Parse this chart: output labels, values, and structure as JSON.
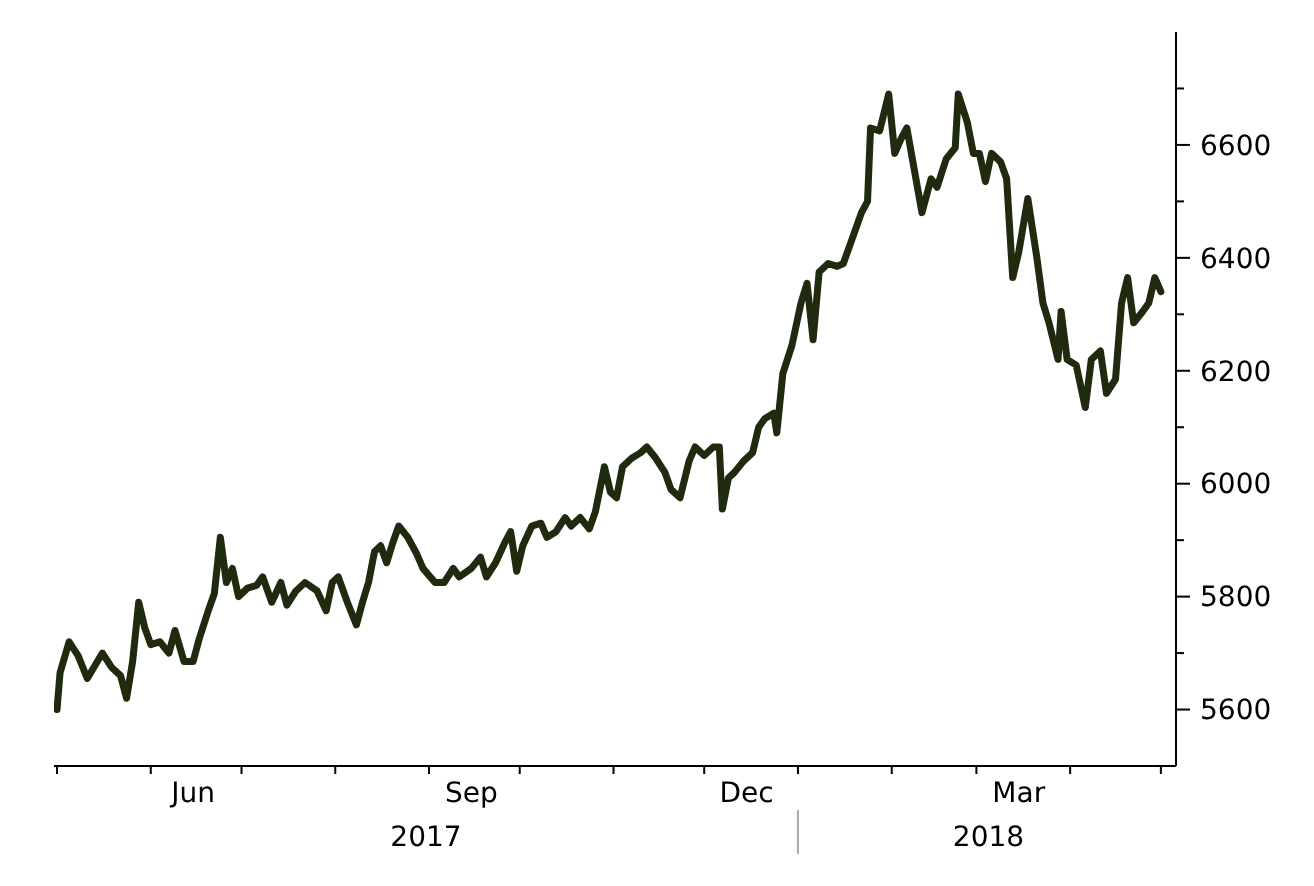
{
  "chart_data": {
    "type": "line",
    "x": [
      "2017-05-01",
      "2017-05-02",
      "2017-05-05",
      "2017-05-08",
      "2017-05-11",
      "2017-05-16",
      "2017-05-19",
      "2017-05-22",
      "2017-05-24",
      "2017-05-26",
      "2017-05-28",
      "2017-05-30",
      "2017-06-01",
      "2017-06-04",
      "2017-06-07",
      "2017-06-09",
      "2017-06-12",
      "2017-06-15",
      "2017-06-17",
      "2017-06-20",
      "2017-06-22",
      "2017-06-24",
      "2017-06-26",
      "2017-06-28",
      "2017-06-30",
      "2017-07-03",
      "2017-07-06",
      "2017-07-08",
      "2017-07-11",
      "2017-07-14",
      "2017-07-16",
      "2017-07-19",
      "2017-07-22",
      "2017-07-26",
      "2017-07-29",
      "2017-07-31",
      "2017-08-02",
      "2017-08-05",
      "2017-08-08",
      "2017-08-10",
      "2017-08-12",
      "2017-08-14",
      "2017-08-16",
      "2017-08-18",
      "2017-08-20",
      "2017-08-22",
      "2017-08-25",
      "2017-08-28",
      "2017-08-30",
      "2017-09-03",
      "2017-09-06",
      "2017-09-09",
      "2017-09-11",
      "2017-09-15",
      "2017-09-18",
      "2017-09-20",
      "2017-09-23",
      "2017-09-26",
      "2017-09-28",
      "2017-09-30",
      "2017-10-02",
      "2017-10-05",
      "2017-10-08",
      "2017-10-10",
      "2017-10-13",
      "2017-10-16",
      "2017-10-18",
      "2017-10-21",
      "2017-10-24",
      "2017-10-26",
      "2017-10-29",
      "2017-10-31",
      "2017-11-02",
      "2017-11-04",
      "2017-11-07",
      "2017-11-10",
      "2017-11-12",
      "2017-11-15",
      "2017-11-18",
      "2017-11-20",
      "2017-11-23",
      "2017-11-26",
      "2017-11-28",
      "2017-12-01",
      "2017-12-04",
      "2017-12-06",
      "2017-12-07",
      "2017-12-09",
      "2017-12-11",
      "2017-12-14",
      "2017-12-17",
      "2017-12-19",
      "2017-12-21",
      "2017-12-24",
      "2017-12-25",
      "2017-12-27",
      "2017-12-30",
      "2018-01-02",
      "2018-01-04",
      "2018-01-06",
      "2018-01-08",
      "2018-01-11",
      "2018-01-14",
      "2018-01-16",
      "2018-01-19",
      "2018-01-22",
      "2018-01-24",
      "2018-01-25",
      "2018-01-28",
      "2018-01-31",
      "2018-02-02",
      "2018-02-04",
      "2018-02-06",
      "2018-02-08",
      "2018-02-11",
      "2018-02-14",
      "2018-02-16",
      "2018-02-19",
      "2018-02-22",
      "2018-02-23",
      "2018-02-26",
      "2018-02-28",
      "2018-03-02",
      "2018-03-04",
      "2018-03-06",
      "2018-03-09",
      "2018-03-11",
      "2018-03-13",
      "2018-03-15",
      "2018-03-18",
      "2018-03-21",
      "2018-03-23",
      "2018-03-25",
      "2018-03-28",
      "2018-03-29",
      "2018-03-31",
      "2018-04-03",
      "2018-04-06",
      "2018-04-08",
      "2018-04-11",
      "2018-04-13",
      "2018-04-16",
      "2018-04-18",
      "2018-04-20",
      "2018-04-22",
      "2018-04-25",
      "2018-04-27",
      "2018-04-29",
      "2018-05-01"
    ],
    "series": [
      {
        "color": "#1f2a0e",
        "values": [
          5600,
          5665,
          5720,
          5695,
          5655,
          5700,
          5675,
          5660,
          5620,
          5685,
          5790,
          5745,
          5715,
          5720,
          5700,
          5740,
          5685,
          5685,
          5725,
          5775,
          5805,
          5905,
          5825,
          5850,
          5800,
          5815,
          5820,
          5835,
          5790,
          5825,
          5785,
          5810,
          5825,
          5810,
          5775,
          5825,
          5835,
          5790,
          5750,
          5790,
          5825,
          5880,
          5890,
          5860,
          5895,
          5925,
          5905,
          5875,
          5850,
          5825,
          5825,
          5850,
          5835,
          5850,
          5870,
          5835,
          5860,
          5895,
          5915,
          5845,
          5890,
          5925,
          5930,
          5905,
          5915,
          5940,
          5925,
          5940,
          5920,
          5950,
          6030,
          5985,
          5975,
          6030,
          6045,
          6055,
          6065,
          6045,
          6020,
          5990,
          5975,
          6040,
          6065,
          6050,
          6065,
          6065,
          5955,
          6010,
          6020,
          6040,
          6055,
          6100,
          6115,
          6125,
          6090,
          6195,
          6245,
          6320,
          6355,
          6255,
          6375,
          6390,
          6385,
          6390,
          6435,
          6480,
          6500,
          6630,
          6625,
          6690,
          6585,
          6610,
          6630,
          6570,
          6480,
          6540,
          6525,
          6575,
          6595,
          6690,
          6640,
          6585,
          6585,
          6535,
          6585,
          6570,
          6540,
          6365,
          6410,
          6505,
          6400,
          6320,
          6285,
          6220,
          6305,
          6220,
          6210,
          6135,
          6220,
          6235,
          6160,
          6185,
          6320,
          6365,
          6285,
          6305,
          6320,
          6365,
          6340
        ]
      }
    ],
    "xlim": [
      "2017-04-30",
      "2018-05-06"
    ],
    "xticks": [
      {
        "value": "2017-05-01",
        "label": null
      },
      {
        "value": "2017-06-01",
        "label": null
      },
      {
        "value": "2017-06-15",
        "label": "Jun"
      },
      {
        "value": "2017-07-01",
        "label": null
      },
      {
        "value": "2017-08-01",
        "label": null
      },
      {
        "value": "2017-09-01",
        "label": null
      },
      {
        "value": "2017-09-15",
        "label": "Sep"
      },
      {
        "value": "2017-10-01",
        "label": null
      },
      {
        "value": "2017-11-01",
        "label": null
      },
      {
        "value": "2017-12-01",
        "label": null
      },
      {
        "value": "2017-12-15",
        "label": "Dec"
      },
      {
        "value": "2018-01-01",
        "label": null
      },
      {
        "value": "2018-02-01",
        "label": null
      },
      {
        "value": "2018-03-01",
        "label": null
      },
      {
        "value": "2018-03-15",
        "label": "Mar"
      },
      {
        "value": "2018-04-01",
        "label": null
      },
      {
        "value": "2018-05-01",
        "label": null
      }
    ],
    "x2lim": [
      "2017-04-30",
      "2018-05-06"
    ],
    "x2ticks": [
      {
        "value": "2017-08-31",
        "label": "2017"
      },
      {
        "value": "2018-01-01",
        "label": null
      },
      {
        "value": "2018-03-05",
        "label": "2018"
      }
    ],
    "ylim": [
      5500,
      6800
    ],
    "yticks": [
      5600,
      {
        "value": 5700,
        "label": null
      },
      5800,
      {
        "value": 5900,
        "label": null
      },
      6000,
      {
        "value": 6100,
        "label": null
      },
      6200,
      {
        "value": 6300,
        "label": null
      },
      6400,
      {
        "value": 6500,
        "label": null
      },
      6600,
      {
        "value": 6700,
        "label": null
      }
    ],
    "grid": false,
    "legend": false,
    "marker": "none",
    "line_style": "solid"
  }
}
